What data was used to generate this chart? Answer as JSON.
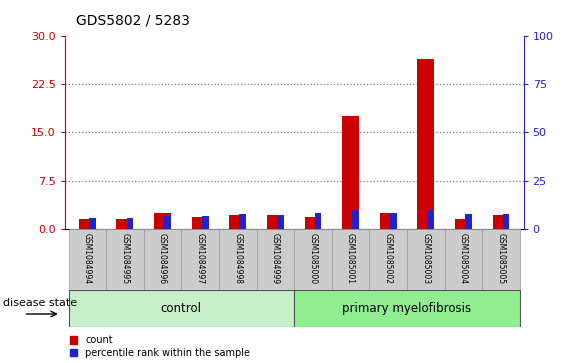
{
  "title": "GDS5802 / 5283",
  "samples": [
    "GSM1084994",
    "GSM1084995",
    "GSM1084996",
    "GSM1084997",
    "GSM1084998",
    "GSM1084999",
    "GSM1085000",
    "GSM1085001",
    "GSM1085002",
    "GSM1085003",
    "GSM1085004",
    "GSM1085005"
  ],
  "count_values": [
    1.5,
    1.5,
    2.5,
    1.8,
    2.2,
    2.2,
    1.8,
    17.5,
    2.5,
    26.5,
    1.5,
    2.2
  ],
  "percentile_values": [
    5.5,
    5.5,
    6.5,
    6.5,
    7.5,
    6.5,
    8.0,
    9.5,
    8.0,
    9.5,
    7.5,
    7.5
  ],
  "control_count": 6,
  "disease_count": 6,
  "group_labels": [
    "control",
    "primary myelofibrosis"
  ],
  "ylim_left": [
    0,
    30
  ],
  "ylim_right": [
    0,
    100
  ],
  "yticks_left": [
    0,
    7.5,
    15,
    22.5,
    30
  ],
  "yticks_right": [
    0,
    25,
    50,
    75,
    100
  ],
  "count_color": "#cc0000",
  "percentile_color": "#2222cc",
  "bar_width": 0.45,
  "pct_bar_width": 0.18,
  "background_color": "#ffffff",
  "group_box_color_control": "#c8f0c8",
  "group_box_color_disease": "#90ee90",
  "tick_label_bg": "#cccccc",
  "tick_label_border": "#999999",
  "legend_count_label": "count",
  "legend_percentile_label": "percentile rank within the sample",
  "disease_state_label": "disease state",
  "ytick_left_color": "#cc0000",
  "ytick_right_color": "#2222cc",
  "gridline_color": "#000000",
  "gridline_alpha": 0.5,
  "title_fontsize": 10,
  "label_fontsize": 5.5,
  "group_fontsize": 8.5,
  "legend_fontsize": 7,
  "disease_state_fontsize": 8
}
